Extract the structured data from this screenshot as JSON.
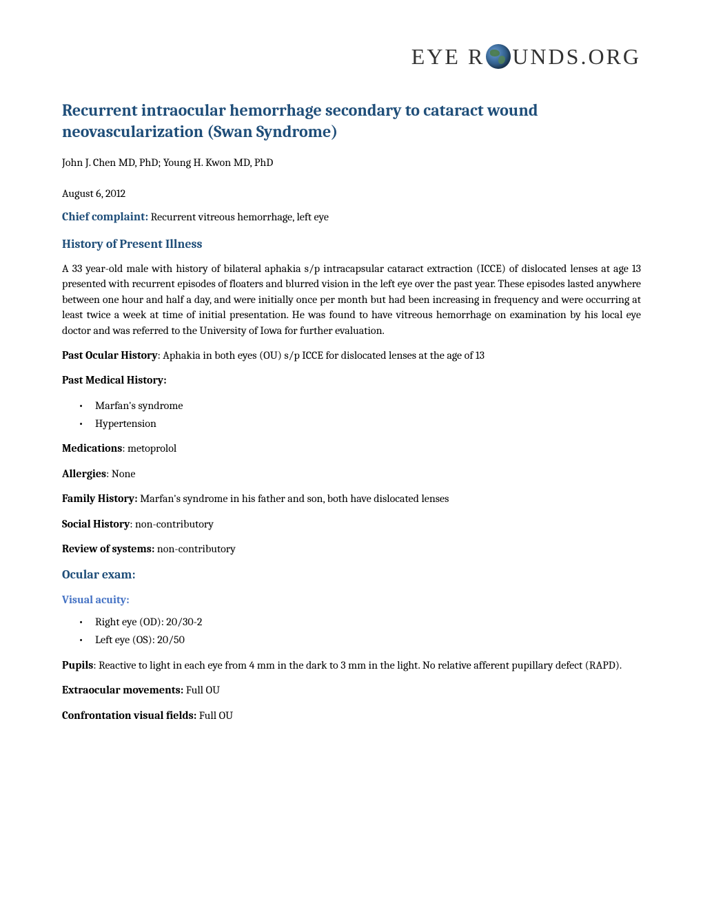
{
  "logo": {
    "text_before": "EYE R",
    "text_after": "UNDS.ORG"
  },
  "title": "Recurrent intraocular hemorrhage secondary to cataract wound neovascularization (Swan Syndrome)",
  "authors": "John J. Chen MD, PhD; Young H. Kwon MD, PhD",
  "date": "August 6, 2012",
  "chief_complaint": {
    "label": "Chief complaint:",
    "text": "  Recurrent vitreous hemorrhage, left eye"
  },
  "hpi": {
    "heading": "History of Present Illness",
    "text": "A 33 year-old male with history of bilateral aphakia s/p intracapsular cataract extraction (ICCE) of dislocated lenses at age 13 presented with recurrent episodes of floaters and blurred vision in the left eye over the past year.  These episodes lasted anywhere between one hour and half a day, and were initially once per month but had been increasing in frequency and were occurring at least twice a week at time of initial presentation.  He was found to have vitreous hemorrhage on examination by his local eye doctor and was referred to the University of Iowa for further evaluation."
  },
  "poh": {
    "label": "Past Ocular History",
    "text": ":  Aphakia in both eyes (OU) s/p ICCE for dislocated lenses at the age of 13"
  },
  "pmh": {
    "label": "Past Medical History:",
    "items": [
      "Marfan's syndrome",
      "Hypertension"
    ]
  },
  "medications": {
    "label": "Medications",
    "text": ":  metoprolol"
  },
  "allergies": {
    "label": "Allergies",
    "text": ":  None"
  },
  "family_history": {
    "label": "Family History:",
    "text": "  Marfan's syndrome in his father and son, both have dislocated lenses"
  },
  "social_history": {
    "label": "Social History",
    "text": ":  non-contributory"
  },
  "ros": {
    "label": "Review of systems:",
    "text": "  non-contributory"
  },
  "ocular_exam": {
    "heading": "Ocular exam:"
  },
  "visual_acuity": {
    "heading": "Visual acuity:",
    "items": [
      "Right eye (OD): 20/30-2",
      "Left eye (OS): 20/50"
    ]
  },
  "pupils": {
    "label": "Pupils",
    "text": ":  Reactive to light in each eye from 4 mm in the dark to 3 mm in the light. No relative afferent pupillary defect (RAPD)."
  },
  "eom": {
    "label": "Extraocular movements:",
    "text": "  Full OU"
  },
  "cvf": {
    "label": "Confrontation visual fields:",
    "text": "  Full OU"
  },
  "colors": {
    "heading_blue": "#1f4e79",
    "subheading_blue": "#4472c4",
    "text_black": "#000000",
    "background": "#ffffff"
  },
  "typography": {
    "body_font": "Cambria, Georgia, serif",
    "body_size": 16,
    "h1_size": 24,
    "section_heading_size": 18,
    "subsection_heading_size": 16
  }
}
